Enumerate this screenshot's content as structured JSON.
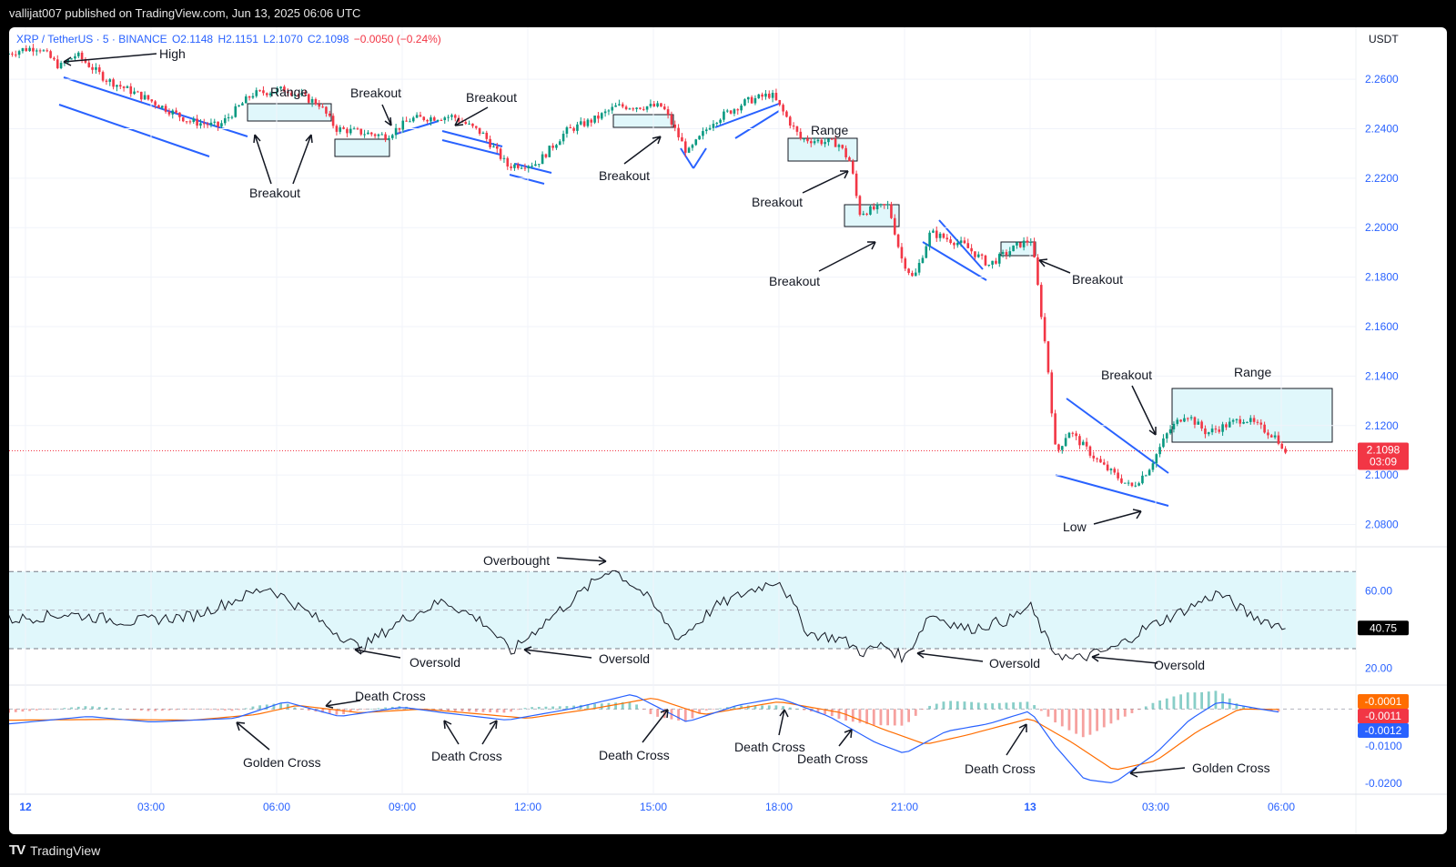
{
  "header": {
    "published": "vallijat007 published on TradingView.com, Jun 13, 2025 06:06 UTC"
  },
  "legend": {
    "symbol": "XRP / TetherUS · 5 · BINANCE",
    "open": "O2.1148",
    "high": "H2.1151",
    "low": "L2.1070",
    "close": "C2.1098",
    "change": "−0.0050 (−0.24%)"
  },
  "currency": "USDT",
  "colors": {
    "up": "#089981",
    "down": "#f23645",
    "accent": "#2962ff",
    "zone": "#e0f7fb",
    "macd_signal": "#ff6d00"
  },
  "chart_data": {
    "type": "candlestick",
    "symbol": "XRP / TetherUS",
    "interval": "5",
    "exchange": "BINANCE",
    "price_axis": {
      "ticks": [
        "2.2600",
        "2.2400",
        "2.2200",
        "2.2000",
        "2.1800",
        "2.1600",
        "2.1400",
        "2.1200",
        "2.1000",
        "2.0800"
      ],
      "range": [
        2.071,
        2.281
      ]
    },
    "time_axis": {
      "labels": [
        "12",
        "03:00",
        "06:00",
        "09:00",
        "12:00",
        "15:00",
        "18:00",
        "21:00",
        "13",
        "03:00",
        "06:00"
      ],
      "hours": [
        0,
        3,
        6,
        9,
        12,
        15,
        18,
        21,
        24,
        27,
        30
      ]
    },
    "price_path": [
      {
        "t": -0.4,
        "p": 2.27
      },
      {
        "t": 0.0,
        "p": 2.272
      },
      {
        "t": 0.4,
        "p": 2.273
      },
      {
        "t": 0.9,
        "p": 2.265
      },
      {
        "t": 1.3,
        "p": 2.27
      },
      {
        "t": 2.0,
        "p": 2.26
      },
      {
        "t": 3.0,
        "p": 2.252
      },
      {
        "t": 4.0,
        "p": 2.243
      },
      {
        "t": 4.7,
        "p": 2.241
      },
      {
        "t": 5.5,
        "p": 2.254
      },
      {
        "t": 6.3,
        "p": 2.256
      },
      {
        "t": 7.1,
        "p": 2.25
      },
      {
        "t": 7.5,
        "p": 2.24
      },
      {
        "t": 8.7,
        "p": 2.237
      },
      {
        "t": 9.3,
        "p": 2.244
      },
      {
        "t": 10.3,
        "p": 2.245
      },
      {
        "t": 11.0,
        "p": 2.238
      },
      {
        "t": 11.6,
        "p": 2.225
      },
      {
        "t": 12.3,
        "p": 2.226
      },
      {
        "t": 13.0,
        "p": 2.239
      },
      {
        "t": 13.7,
        "p": 2.244
      },
      {
        "t": 14.2,
        "p": 2.249
      },
      {
        "t": 15.3,
        "p": 2.249
      },
      {
        "t": 15.9,
        "p": 2.23
      },
      {
        "t": 16.5,
        "p": 2.243
      },
      {
        "t": 17.3,
        "p": 2.251
      },
      {
        "t": 17.9,
        "p": 2.254
      },
      {
        "t": 18.6,
        "p": 2.236
      },
      {
        "t": 19.5,
        "p": 2.234
      },
      {
        "t": 19.8,
        "p": 2.226
      },
      {
        "t": 20.0,
        "p": 2.206
      },
      {
        "t": 20.7,
        "p": 2.209
      },
      {
        "t": 21.0,
        "p": 2.188
      },
      {
        "t": 21.3,
        "p": 2.179
      },
      {
        "t": 21.7,
        "p": 2.198
      },
      {
        "t": 22.5,
        "p": 2.193
      },
      {
        "t": 23.1,
        "p": 2.185
      },
      {
        "t": 23.8,
        "p": 2.193
      },
      {
        "t": 24.1,
        "p": 2.195
      },
      {
        "t": 24.2,
        "p": 2.185
      },
      {
        "t": 24.5,
        "p": 2.145
      },
      {
        "t": 24.7,
        "p": 2.108
      },
      {
        "t": 25.0,
        "p": 2.118
      },
      {
        "t": 25.8,
        "p": 2.104
      },
      {
        "t": 26.5,
        "p": 2.095
      },
      {
        "t": 26.9,
        "p": 2.102
      },
      {
        "t": 27.4,
        "p": 2.118
      },
      {
        "t": 27.8,
        "p": 2.125
      },
      {
        "t": 28.3,
        "p": 2.117
      },
      {
        "t": 29.2,
        "p": 2.123
      },
      {
        "t": 30.0,
        "p": 2.115
      },
      {
        "t": 30.1,
        "p": 2.1098
      }
    ],
    "last_price": "2.1098",
    "countdown": "03:09",
    "rsi": {
      "ticks": [
        "60.00",
        "20.00"
      ],
      "range": [
        14,
        80
      ],
      "band": [
        30,
        70
      ],
      "mid": 50,
      "value": "40.75",
      "path": [
        {
          "t": -0.4,
          "p": 45
        },
        {
          "t": 1.0,
          "p": 48
        },
        {
          "t": 2.5,
          "p": 44
        },
        {
          "t": 4.0,
          "p": 47
        },
        {
          "t": 5.8,
          "p": 62
        },
        {
          "t": 7.0,
          "p": 45
        },
        {
          "t": 8.0,
          "p": 30
        },
        {
          "t": 9.0,
          "p": 45
        },
        {
          "t": 10.0,
          "p": 55
        },
        {
          "t": 11.0,
          "p": 43
        },
        {
          "t": 11.6,
          "p": 28
        },
        {
          "t": 12.3,
          "p": 42
        },
        {
          "t": 13.0,
          "p": 54
        },
        {
          "t": 14.0,
          "p": 72
        },
        {
          "t": 14.8,
          "p": 58
        },
        {
          "t": 15.6,
          "p": 35
        },
        {
          "t": 16.5,
          "p": 52
        },
        {
          "t": 17.3,
          "p": 60
        },
        {
          "t": 18.0,
          "p": 66
        },
        {
          "t": 18.7,
          "p": 38
        },
        {
          "t": 19.5,
          "p": 35
        },
        {
          "t": 20.0,
          "p": 28
        },
        {
          "t": 20.5,
          "p": 32
        },
        {
          "t": 21.0,
          "p": 25
        },
        {
          "t": 21.6,
          "p": 48
        },
        {
          "t": 22.5,
          "p": 40
        },
        {
          "t": 23.5,
          "p": 45
        },
        {
          "t": 24.0,
          "p": 52
        },
        {
          "t": 24.5,
          "p": 30
        },
        {
          "t": 25.0,
          "p": 24
        },
        {
          "t": 26.0,
          "p": 30
        },
        {
          "t": 26.7,
          "p": 40
        },
        {
          "t": 27.5,
          "p": 48
        },
        {
          "t": 28.5,
          "p": 59
        },
        {
          "t": 29.2,
          "p": 48
        },
        {
          "t": 30.1,
          "p": 40.75
        }
      ]
    },
    "macd": {
      "ticks": [
        "-0.0100",
        "-0.0200"
      ],
      "range": [
        -0.0225,
        0.0055
      ],
      "value_labels": [
        "-0.0001",
        "-0.0011",
        "-0.0012"
      ],
      "macd_path": [
        {
          "t": -0.4,
          "p": -0.004
        },
        {
          "t": 1.5,
          "p": -0.002
        },
        {
          "t": 3.0,
          "p": -0.0035
        },
        {
          "t": 5.0,
          "p": -0.0025
        },
        {
          "t": 6.2,
          "p": 0.002
        },
        {
          "t": 7.5,
          "p": -0.002
        },
        {
          "t": 9.0,
          "p": 0.0005
        },
        {
          "t": 10.0,
          "p": -0.001
        },
        {
          "t": 11.5,
          "p": -0.003
        },
        {
          "t": 13.0,
          "p": 0.0
        },
        {
          "t": 14.5,
          "p": 0.004
        },
        {
          "t": 15.8,
          "p": -0.0035
        },
        {
          "t": 17.0,
          "p": 0.001
        },
        {
          "t": 18.0,
          "p": 0.003
        },
        {
          "t": 19.2,
          "p": -0.002
        },
        {
          "t": 20.3,
          "p": -0.009
        },
        {
          "t": 21.0,
          "p": -0.012
        },
        {
          "t": 22.0,
          "p": -0.006
        },
        {
          "t": 23.0,
          "p": -0.004
        },
        {
          "t": 24.0,
          "p": -0.0005
        },
        {
          "t": 24.6,
          "p": -0.01
        },
        {
          "t": 25.3,
          "p": -0.019
        },
        {
          "t": 26.0,
          "p": -0.02
        },
        {
          "t": 27.0,
          "p": -0.012
        },
        {
          "t": 27.8,
          "p": -0.003
        },
        {
          "t": 28.5,
          "p": 0.002
        },
        {
          "t": 29.5,
          "p": 0.0
        },
        {
          "t": 30.1,
          "p": -0.0011
        }
      ],
      "signal_path": [
        {
          "t": -0.4,
          "p": -0.003
        },
        {
          "t": 2.0,
          "p": -0.0028
        },
        {
          "t": 4.0,
          "p": -0.003
        },
        {
          "t": 5.5,
          "p": -0.0015
        },
        {
          "t": 6.5,
          "p": 0.001
        },
        {
          "t": 8.0,
          "p": -0.001
        },
        {
          "t": 9.5,
          "p": 0.0
        },
        {
          "t": 11.0,
          "p": -0.0015
        },
        {
          "t": 12.0,
          "p": -0.0025
        },
        {
          "t": 13.5,
          "p": 0.0
        },
        {
          "t": 15.0,
          "p": 0.003
        },
        {
          "t": 16.2,
          "p": -0.0015
        },
        {
          "t": 18.0,
          "p": 0.002
        },
        {
          "t": 19.5,
          "p": -0.001
        },
        {
          "t": 20.5,
          "p": -0.0055
        },
        {
          "t": 21.5,
          "p": -0.0095
        },
        {
          "t": 22.5,
          "p": -0.007
        },
        {
          "t": 24.0,
          "p": -0.0025
        },
        {
          "t": 25.0,
          "p": -0.009
        },
        {
          "t": 26.0,
          "p": -0.0165
        },
        {
          "t": 27.0,
          "p": -0.014
        },
        {
          "t": 28.0,
          "p": -0.006
        },
        {
          "t": 29.0,
          "p": 0.0
        },
        {
          "t": 30.1,
          "p": -0.0001
        }
      ]
    },
    "annotations": {
      "texts": [
        {
          "id": "high",
          "text": "High"
        },
        {
          "id": "range-1",
          "text": "Range"
        },
        {
          "id": "breakout-1",
          "text": "Breakout"
        },
        {
          "id": "breakout-2",
          "text": "Breakout"
        },
        {
          "id": "breakout-3",
          "text": "Breakout"
        },
        {
          "id": "breakout-4",
          "text": "Breakout"
        },
        {
          "id": "range-2",
          "text": "Range"
        },
        {
          "id": "breakout-5",
          "text": "Breakout"
        },
        {
          "id": "breakout-6",
          "text": "Breakout"
        },
        {
          "id": "breakout-7",
          "text": "Breakout"
        },
        {
          "id": "breakout-8",
          "text": "Breakout"
        },
        {
          "id": "range-3",
          "text": "Range"
        },
        {
          "id": "low",
          "text": "Low"
        },
        {
          "id": "overbought",
          "text": "Overbought"
        },
        {
          "id": "oversold-1",
          "text": "Oversold"
        },
        {
          "id": "oversold-2",
          "text": "Oversold"
        },
        {
          "id": "oversold-3",
          "text": "Oversold"
        },
        {
          "id": "oversold-4",
          "text": "Oversold"
        },
        {
          "id": "death-cross-1",
          "text": "Death Cross"
        },
        {
          "id": "golden-cross-1",
          "text": "Golden Cross"
        },
        {
          "id": "death-cross-2",
          "text": "Death Cross"
        },
        {
          "id": "death-cross-3",
          "text": "Death Cross"
        },
        {
          "id": "death-cross-4",
          "text": "Death Cross"
        },
        {
          "id": "death-cross-5",
          "text": "Death Cross"
        },
        {
          "id": "death-cross-6",
          "text": "Death Cross"
        },
        {
          "id": "golden-cross-2",
          "text": "Golden Cross"
        }
      ]
    }
  },
  "footer": {
    "brand": "TradingView",
    "logo_glyph": "TV"
  }
}
